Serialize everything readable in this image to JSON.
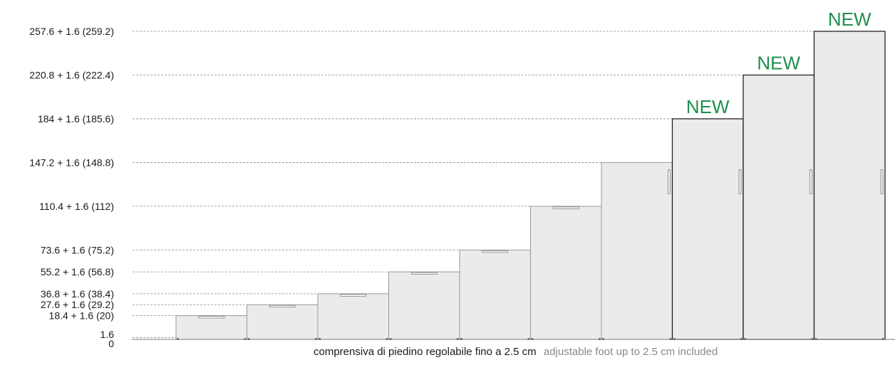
{
  "chart_data": {
    "type": "bar",
    "ylim": [
      0,
      259.2
    ],
    "y_tick_labels": [
      "0",
      "1.6",
      "18.4 + 1.6 (20)",
      "27.6 + 1.6 (29.2)",
      "36.8 + 1.6 (38.4)",
      "55.2 + 1.6 (56.8)",
      "73.6 + 1.6 (75.2)",
      "110.4 + 1.6 (112)",
      "147.2 + 1.6 (148.8)",
      "184 + 1.6 (185.6)",
      "220.8 + 1.6 (222.4)",
      "257.6 + 1.6 (259.2)"
    ],
    "y_tick_values": [
      0,
      1.6,
      20,
      29.2,
      38.4,
      56.8,
      75.2,
      112,
      148.8,
      185.6,
      222.4,
      259.2
    ],
    "values": [
      20,
      29.2,
      38.4,
      56.8,
      75.2,
      112,
      148.8,
      185.6,
      222.4,
      259.2
    ],
    "new_flags": [
      false,
      false,
      false,
      false,
      false,
      false,
      false,
      true,
      true,
      true
    ],
    "new_label": "NEW",
    "grid": "dashed horizontal",
    "colors": {
      "bar_fill": "#ebebeb",
      "bar_stroke_old": "#999999",
      "bar_stroke_new": "#222222",
      "new_label": "#1f8f4e",
      "grid": "#8a8a8a",
      "text": "#1a1a1a"
    }
  },
  "footnote": {
    "italian": "comprensiva di piedino regolabile fino a 2.5 cm",
    "english": "adjustable foot up to 2.5 cm included"
  }
}
